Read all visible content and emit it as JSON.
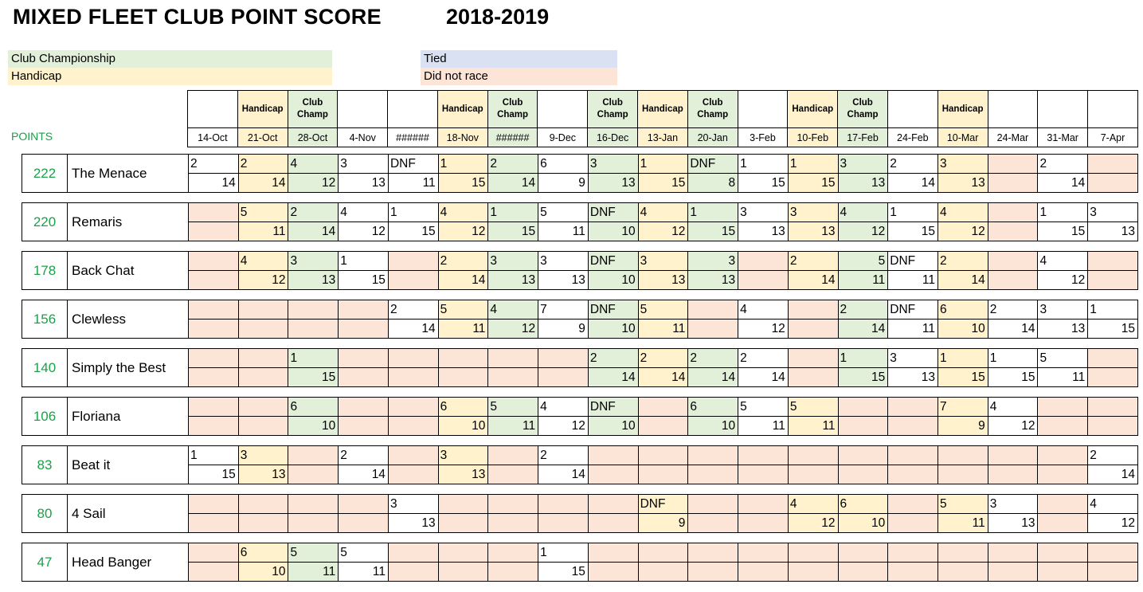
{
  "title": "MIXED FLEET CLUB POINT SCORE",
  "season": "2018-2019",
  "points_label": "POINTS",
  "colors": {
    "club_champ": "#E2EFD9",
    "handicap": "#FFF2CC",
    "tied": "#D9E1F2",
    "did_not_race": "#FCE4D6",
    "white": "#FFFFFF",
    "green_text": "#1CA049",
    "border": "#000000"
  },
  "legend": [
    {
      "label": "Club Championship",
      "key": "club_champ"
    },
    {
      "label": "Handicap",
      "key": "handicap"
    },
    {
      "label": "Tied",
      "key": "tied"
    },
    {
      "label": "Did not race",
      "key": "did_not_race"
    }
  ],
  "columns": [
    {
      "date": "14-Oct",
      "type": ""
    },
    {
      "date": "21-Oct",
      "type": "Handicap"
    },
    {
      "date": "28-Oct",
      "type": "Club Champ"
    },
    {
      "date": "4-Nov",
      "type": ""
    },
    {
      "date": "######",
      "type": ""
    },
    {
      "date": "18-Nov",
      "type": "Handicap"
    },
    {
      "date": "######",
      "type": "Club Champ"
    },
    {
      "date": "9-Dec",
      "type": ""
    },
    {
      "date": "16-Dec",
      "type": "Club Champ"
    },
    {
      "date": "13-Jan",
      "type": "Handicap"
    },
    {
      "date": "20-Jan",
      "type": "Club Champ"
    },
    {
      "date": "3-Feb",
      "type": ""
    },
    {
      "date": "10-Feb",
      "type": "Handicap"
    },
    {
      "date": "17-Feb",
      "type": "Club Champ"
    },
    {
      "date": "24-Feb",
      "type": ""
    },
    {
      "date": "10-Mar",
      "type": "Handicap"
    },
    {
      "date": "24-Mar",
      "type": ""
    },
    {
      "date": "31-Mar",
      "type": ""
    },
    {
      "date": "7-Apr",
      "type": ""
    }
  ],
  "boats": [
    {
      "points": "222",
      "name": "The Menace",
      "races": [
        {
          "c": "w",
          "p": "2",
          "s": "14"
        },
        {
          "c": "y",
          "p": "2",
          "s": "14"
        },
        {
          "c": "g",
          "p": "4",
          "s": "12"
        },
        {
          "c": "w",
          "p": "3",
          "s": "13"
        },
        {
          "c": "w",
          "p": "DNF",
          "s": "11"
        },
        {
          "c": "y",
          "p": "1",
          "s": "15"
        },
        {
          "c": "g",
          "p": "2",
          "s": "14"
        },
        {
          "c": "w",
          "p": "6",
          "s": "9"
        },
        {
          "c": "g",
          "p": "3",
          "s": "13"
        },
        {
          "c": "y",
          "p": "1",
          "s": "15"
        },
        {
          "c": "g",
          "p": "DNF",
          "s": "8"
        },
        {
          "c": "w",
          "p": "1",
          "s": "15"
        },
        {
          "c": "y",
          "p": "1",
          "s": "15"
        },
        {
          "c": "g",
          "p": "3",
          "s": "13"
        },
        {
          "c": "w",
          "p": "2",
          "s": "14"
        },
        {
          "c": "y",
          "p": "3",
          "s": "13"
        },
        {
          "c": "p"
        },
        {
          "c": "w",
          "p": "2",
          "s": "14"
        },
        {
          "c": "p"
        }
      ]
    },
    {
      "points": "220",
      "name": "Remaris",
      "races": [
        {
          "c": "p"
        },
        {
          "c": "y",
          "p": "5",
          "s": "11"
        },
        {
          "c": "g",
          "p": "2",
          "s": "14"
        },
        {
          "c": "w",
          "p": "4",
          "s": "12"
        },
        {
          "c": "w",
          "p": "1",
          "s": "15"
        },
        {
          "c": "y",
          "p": "4",
          "s": "12"
        },
        {
          "c": "g",
          "p": "1",
          "s": "15"
        },
        {
          "c": "w",
          "p": "5",
          "s": "11"
        },
        {
          "c": "g",
          "p": "DNF",
          "s": "10"
        },
        {
          "c": "y",
          "p": "4",
          "s": "12"
        },
        {
          "c": "g",
          "p": "1",
          "s": "15"
        },
        {
          "c": "w",
          "p": "3",
          "s": "13"
        },
        {
          "c": "y",
          "p": "3",
          "s": "13"
        },
        {
          "c": "g",
          "p": "4",
          "s": "12"
        },
        {
          "c": "w",
          "p": "1",
          "s": "15"
        },
        {
          "c": "y",
          "p": "4",
          "s": "12"
        },
        {
          "c": "p"
        },
        {
          "c": "w",
          "p": "1",
          "s": "15"
        },
        {
          "c": "w",
          "p": "3",
          "s": "13"
        }
      ]
    },
    {
      "points": "178",
      "name": "Back Chat",
      "races": [
        {
          "c": "p"
        },
        {
          "c": "y",
          "p": "4",
          "s": "12"
        },
        {
          "c": "g",
          "p": "3",
          "s": "13"
        },
        {
          "c": "w",
          "p": "1",
          "s": "15"
        },
        {
          "c": "p"
        },
        {
          "c": "y",
          "p": "2",
          "s": "14"
        },
        {
          "c": "g",
          "p": "3",
          "s": "13"
        },
        {
          "c": "w",
          "p": "3",
          "s": "13"
        },
        {
          "c": "g",
          "p": "DNF",
          "s": "10"
        },
        {
          "c": "y",
          "p": "3",
          "s": "13"
        },
        {
          "c": "g",
          "p": "3",
          "s": "13",
          "a": "r"
        },
        {
          "c": "p"
        },
        {
          "c": "y",
          "p": "2",
          "s": "14"
        },
        {
          "c": "g",
          "p": "5",
          "s": "11",
          "a": "r"
        },
        {
          "c": "w",
          "p": "DNF",
          "s": "11"
        },
        {
          "c": "y",
          "p": "2",
          "s": "14"
        },
        {
          "c": "p"
        },
        {
          "c": "w",
          "p": "4",
          "s": "12"
        },
        {
          "c": "p"
        }
      ]
    },
    {
      "points": "156",
      "name": "Clewless",
      "races": [
        {
          "c": "p"
        },
        {
          "c": "p"
        },
        {
          "c": "p"
        },
        {
          "c": "p"
        },
        {
          "c": "w",
          "p": "2",
          "s": "14"
        },
        {
          "c": "y",
          "p": "5",
          "s": "11"
        },
        {
          "c": "g",
          "p": "4",
          "s": "12"
        },
        {
          "c": "w",
          "p": "7",
          "s": "9"
        },
        {
          "c": "g",
          "p": "DNF",
          "s": "10"
        },
        {
          "c": "y",
          "p": "5",
          "s": "11"
        },
        {
          "c": "p"
        },
        {
          "c": "w",
          "p": "4",
          "s": "12"
        },
        {
          "c": "p"
        },
        {
          "c": "g",
          "p": "2",
          "s": "14"
        },
        {
          "c": "w",
          "p": "DNF",
          "s": "11"
        },
        {
          "c": "y",
          "p": "6",
          "s": "10"
        },
        {
          "c": "w",
          "p": "2",
          "s": "14"
        },
        {
          "c": "w",
          "p": "3",
          "s": "13"
        },
        {
          "c": "w",
          "p": "1",
          "s": "15"
        }
      ]
    },
    {
      "points": "140",
      "name": "Simply the Best",
      "races": [
        {
          "c": "p"
        },
        {
          "c": "p"
        },
        {
          "c": "g",
          "p": "1",
          "s": "15"
        },
        {
          "c": "p"
        },
        {
          "c": "p"
        },
        {
          "c": "p"
        },
        {
          "c": "p"
        },
        {
          "c": "p"
        },
        {
          "c": "g",
          "p": "2",
          "s": "14"
        },
        {
          "c": "y",
          "p": "2",
          "s": "14"
        },
        {
          "c": "g",
          "p": "2",
          "s": "14"
        },
        {
          "c": "w",
          "p": "2",
          "s": "14"
        },
        {
          "c": "p"
        },
        {
          "c": "g",
          "p": "1",
          "s": "15"
        },
        {
          "c": "w",
          "p": "3",
          "s": "13"
        },
        {
          "c": "y",
          "p": "1",
          "s": "15"
        },
        {
          "c": "w",
          "p": "1",
          "s": "15"
        },
        {
          "c": "w",
          "p": "5",
          "s": "11"
        },
        {
          "c": "p"
        }
      ]
    },
    {
      "points": "106",
      "name": "Floriana",
      "races": [
        {
          "c": "p"
        },
        {
          "c": "p"
        },
        {
          "c": "g",
          "p": "6",
          "s": "10"
        },
        {
          "c": "p"
        },
        {
          "c": "p"
        },
        {
          "c": "y",
          "p": "6",
          "s": "10"
        },
        {
          "c": "g",
          "p": "5",
          "s": "11"
        },
        {
          "c": "w",
          "p": "4",
          "s": "12"
        },
        {
          "c": "g",
          "p": "DNF",
          "s": "10"
        },
        {
          "c": "p"
        },
        {
          "c": "g",
          "p": "6",
          "s": "10"
        },
        {
          "c": "w",
          "p": "5",
          "s": "11"
        },
        {
          "c": "y",
          "p": "5",
          "s": "11"
        },
        {
          "c": "p"
        },
        {
          "c": "p"
        },
        {
          "c": "y",
          "p": "7",
          "s": "9"
        },
        {
          "c": "w",
          "p": "4",
          "s": "12"
        },
        {
          "c": "p"
        },
        {
          "c": "p"
        }
      ]
    },
    {
      "points": "83",
      "name": "Beat it",
      "races": [
        {
          "c": "w",
          "p": "1",
          "s": "15"
        },
        {
          "c": "y",
          "p": "3",
          "s": "13"
        },
        {
          "c": "p"
        },
        {
          "c": "w",
          "p": "2",
          "s": "14"
        },
        {
          "c": "p"
        },
        {
          "c": "y",
          "p": "3",
          "s": "13"
        },
        {
          "c": "p"
        },
        {
          "c": "w",
          "p": "2",
          "s": "14"
        },
        {
          "c": "p"
        },
        {
          "c": "p"
        },
        {
          "c": "p"
        },
        {
          "c": "p"
        },
        {
          "c": "p"
        },
        {
          "c": "p"
        },
        {
          "c": "p"
        },
        {
          "c": "p"
        },
        {
          "c": "p"
        },
        {
          "c": "p"
        },
        {
          "c": "w",
          "p": "2",
          "s": "14"
        }
      ]
    },
    {
      "points": "80",
      "name": "4 Sail",
      "races": [
        {
          "c": "p"
        },
        {
          "c": "p"
        },
        {
          "c": "p"
        },
        {
          "c": "p"
        },
        {
          "c": "w",
          "p": "3",
          "s": "13"
        },
        {
          "c": "p"
        },
        {
          "c": "p"
        },
        {
          "c": "p"
        },
        {
          "c": "p"
        },
        {
          "c": "y",
          "p": "DNF",
          "s": "9"
        },
        {
          "c": "p"
        },
        {
          "c": "p"
        },
        {
          "c": "y",
          "p": "4",
          "s": "12"
        },
        {
          "c": "y",
          "p": "6",
          "s": "10"
        },
        {
          "c": "p"
        },
        {
          "c": "y",
          "p": "5",
          "s": "11"
        },
        {
          "c": "w",
          "p": "3",
          "s": "13"
        },
        {
          "c": "p"
        },
        {
          "c": "w",
          "p": "4",
          "s": "12"
        }
      ]
    },
    {
      "points": "47",
      "name": "Head Banger",
      "races": [
        {
          "c": "p"
        },
        {
          "c": "y",
          "p": "6",
          "s": "10"
        },
        {
          "c": "g",
          "p": "5",
          "s": "11"
        },
        {
          "c": "w",
          "p": "5",
          "s": "11"
        },
        {
          "c": "p"
        },
        {
          "c": "p"
        },
        {
          "c": "p"
        },
        {
          "c": "w",
          "p": "1",
          "s": "15"
        },
        {
          "c": "p"
        },
        {
          "c": "p"
        },
        {
          "c": "p"
        },
        {
          "c": "p"
        },
        {
          "c": "p"
        },
        {
          "c": "p"
        },
        {
          "c": "p"
        },
        {
          "c": "p"
        },
        {
          "c": "p"
        },
        {
          "c": "p"
        },
        {
          "c": "p"
        }
      ]
    }
  ]
}
